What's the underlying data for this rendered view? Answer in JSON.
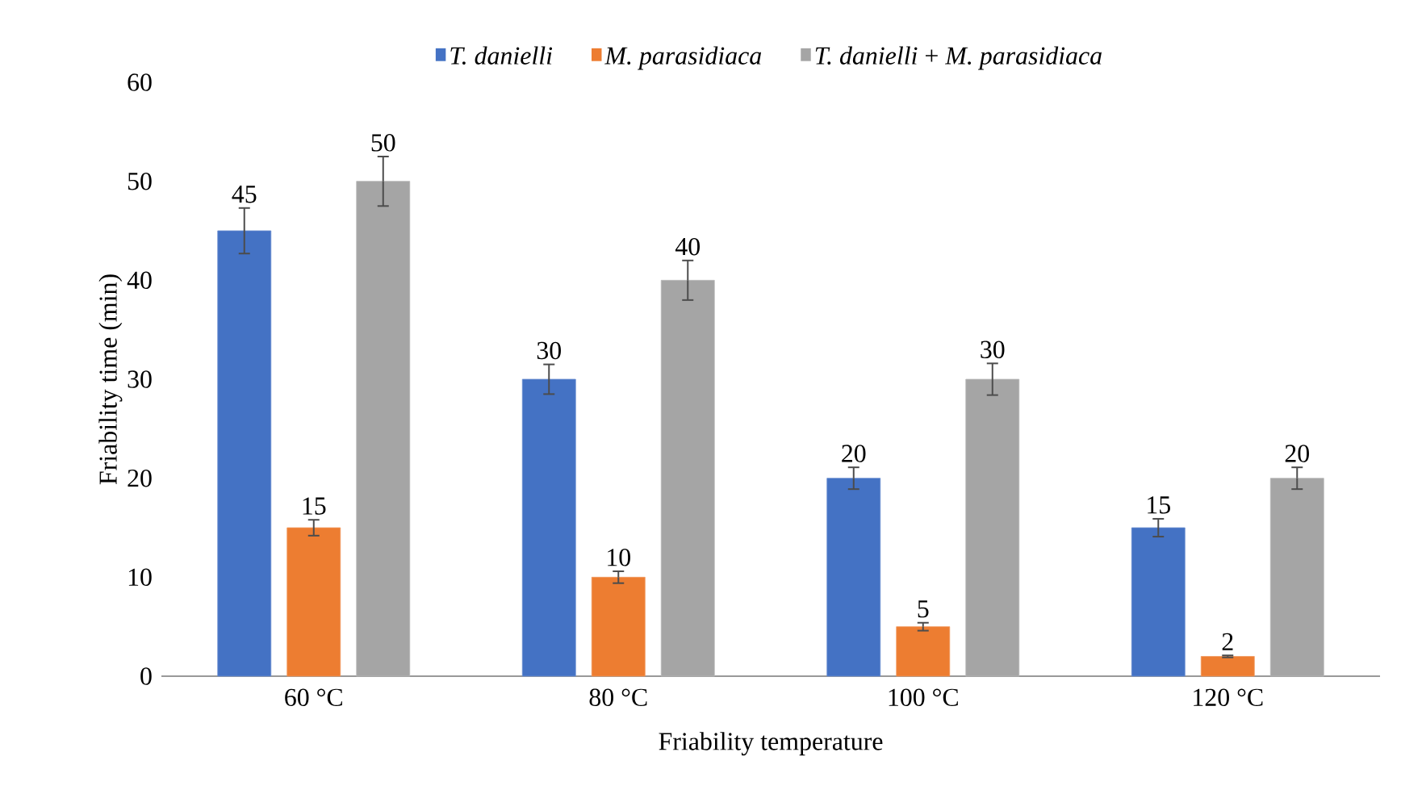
{
  "chart_data": {
    "type": "bar",
    "xlabel": "Friability temperature",
    "ylabel": "Friability time (min)",
    "categories": [
      "60 °C",
      "80 °C",
      "100 °C",
      "120 °C"
    ],
    "series": [
      {
        "name": "*T. danielli*",
        "color": "#4472c4",
        "values": [
          45,
          30,
          20,
          15
        ],
        "errors": [
          2.3,
          1.5,
          1.1,
          0.9
        ]
      },
      {
        "name": "*M. parasidiaca*",
        "color": "#ed7d31",
        "values": [
          15,
          10,
          5,
          2
        ],
        "errors": [
          0.8,
          0.6,
          0.4,
          0.1
        ]
      },
      {
        "name": "*T. danielli* + *M. parasidiaca*",
        "color": "#a5a5a5",
        "values": [
          50,
          40,
          30,
          20
        ],
        "errors": [
          2.5,
          2,
          1.6,
          1.1
        ]
      }
    ],
    "ylim": [
      0,
      60
    ],
    "yticks": [
      0,
      10,
      20,
      30,
      40,
      50,
      60
    ],
    "data_labels": true,
    "legend": "top",
    "grid": false
  }
}
